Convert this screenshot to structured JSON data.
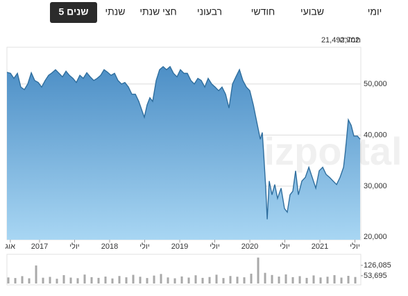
{
  "tabs": [
    "יומי",
    "שבועי",
    "חודשי",
    "רבעוני",
    "חצי שנתי",
    "שנתי",
    "5 שנים"
  ],
  "selected_tab": 6,
  "turnover": {
    "label": "תמורה:",
    "value": "21,492,702"
  },
  "watermark": "Bizportal",
  "chart_data": [
    {
      "type": "area",
      "color": "#2f6e9e",
      "fill_top": "#4d8fc6",
      "fill_bottom": "#a8d6f3",
      "grid": true,
      "xlim": [
        2016.535,
        2021.584
      ],
      "ylim": [
        19500,
        57200
      ],
      "xticks": [
        {
          "value": 2016.583,
          "label": "אוג"
        },
        2017,
        {
          "value": 2017.5,
          "label": "יולי"
        },
        2018,
        {
          "value": 2018.5,
          "label": "יולי"
        },
        2019,
        {
          "value": 2019.5,
          "label": "יולי"
        },
        2020,
        {
          "value": 2020.5,
          "label": "יולי"
        },
        2021,
        {
          "value": 2021.5,
          "label": "יולי"
        }
      ],
      "yticks": [
        {
          "value": 20000,
          "label": "20,000"
        },
        {
          "value": 30000,
          "label": "30,000"
        },
        {
          "value": 40000,
          "label": "40,000"
        },
        {
          "value": 50000,
          "label": "50,000"
        }
      ],
      "x": [
        2016.535,
        2016.585,
        2016.634,
        2016.684,
        2016.733,
        2016.783,
        2016.832,
        2016.882,
        2016.931,
        2016.981,
        2017.03,
        2017.08,
        2017.129,
        2017.179,
        2017.228,
        2017.278,
        2017.327,
        2017.377,
        2017.426,
        2017.476,
        2017.525,
        2017.575,
        2017.624,
        2017.674,
        2017.723,
        2017.773,
        2017.822,
        2017.872,
        2017.921,
        2017.971,
        2018.02,
        2018.07,
        2018.119,
        2018.169,
        2018.218,
        2018.268,
        2018.317,
        2018.367,
        2018.416,
        2018.466,
        2018.495,
        2018.535,
        2018.574,
        2018.614,
        2018.664,
        2018.713,
        2018.763,
        2018.812,
        2018.862,
        2018.911,
        2018.961,
        2019.01,
        2019.06,
        2019.109,
        2019.159,
        2019.208,
        2019.258,
        2019.307,
        2019.357,
        2019.406,
        2019.456,
        2019.505,
        2019.555,
        2019.604,
        2019.654,
        2019.703,
        2019.753,
        2019.802,
        2019.852,
        2019.901,
        2019.951,
        2020.0,
        2020.05,
        2020.099,
        2020.149,
        2020.178,
        2020.198,
        2020.228,
        2020.248,
        2020.277,
        2020.317,
        2020.356,
        2020.396,
        2020.446,
        2020.495,
        2020.535,
        2020.574,
        2020.614,
        2020.653,
        2020.693,
        2020.743,
        2020.792,
        2020.842,
        2020.891,
        2020.941,
        2020.99,
        2021.04,
        2021.089,
        2021.139,
        2021.188,
        2021.238,
        2021.287,
        2021.337,
        2021.366,
        2021.406,
        2021.446,
        2021.485,
        2021.535,
        2021.574
      ],
      "values": [
        52300,
        52100,
        51100,
        52100,
        49400,
        48900,
        50000,
        52200,
        50700,
        50300,
        49400,
        50700,
        51700,
        52200,
        52800,
        52100,
        51400,
        52500,
        51700,
        51100,
        50300,
        51700,
        51100,
        52200,
        51400,
        50700,
        51100,
        51700,
        52800,
        52300,
        51700,
        52100,
        50700,
        50000,
        50300,
        49400,
        48000,
        48000,
        46600,
        44600,
        43500,
        45900,
        47300,
        46600,
        50700,
        52800,
        53400,
        52800,
        53400,
        52100,
        51400,
        52800,
        52100,
        52100,
        50700,
        50000,
        51100,
        50700,
        49400,
        51100,
        50000,
        49400,
        48700,
        49400,
        48000,
        45300,
        50000,
        51400,
        52800,
        50700,
        49400,
        48700,
        45900,
        42600,
        39200,
        40500,
        36400,
        29600,
        23500,
        31000,
        28300,
        30300,
        27600,
        29600,
        25600,
        24900,
        28300,
        29000,
        33000,
        28300,
        31000,
        31700,
        33700,
        31700,
        29600,
        33000,
        33700,
        32300,
        31700,
        31000,
        30300,
        31700,
        33700,
        37100,
        43000,
        41900,
        39800,
        39800,
        39200
      ]
    },
    {
      "type": "bar",
      "color": "#a9a9a9",
      "xlim": [
        2016.535,
        2021.584
      ],
      "ylim": [
        0,
        193000
      ],
      "yticks": [
        {
          "value": 53695,
          "label": "53,695"
        },
        {
          "value": 126085,
          "label": "126,085"
        }
      ],
      "x": [
        2016.555,
        2016.654,
        2016.753,
        2016.852,
        2016.951,
        2017.05,
        2017.149,
        2017.248,
        2017.347,
        2017.446,
        2017.545,
        2017.644,
        2017.743,
        2017.842,
        2017.941,
        2018.04,
        2018.139,
        2018.238,
        2018.337,
        2018.436,
        2018.535,
        2018.634,
        2018.733,
        2018.832,
        2018.931,
        2019.03,
        2019.129,
        2019.228,
        2019.327,
        2019.426,
        2019.525,
        2019.624,
        2019.723,
        2019.822,
        2019.921,
        2020.02,
        2020.119,
        2020.218,
        2020.317,
        2020.416,
        2020.515,
        2020.614,
        2020.713,
        2020.812,
        2020.911,
        2021.01,
        2021.109,
        2021.208,
        2021.307,
        2021.406,
        2021.505
      ],
      "values": [
        42000,
        38000,
        51000,
        36000,
        125000,
        40000,
        46000,
        33000,
        58000,
        41000,
        37000,
        62000,
        44000,
        39000,
        48000,
        35000,
        52000,
        43000,
        60000,
        47000,
        38000,
        55000,
        66000,
        42000,
        36000,
        49000,
        41000,
        57000,
        39000,
        45000,
        61000,
        38000,
        52000,
        47000,
        43000,
        68000,
        180000,
        74000,
        59000,
        48000,
        63000,
        44000,
        51000,
        39000,
        56000,
        42000,
        47000,
        58000,
        41000,
        53000,
        45000
      ]
    }
  ]
}
